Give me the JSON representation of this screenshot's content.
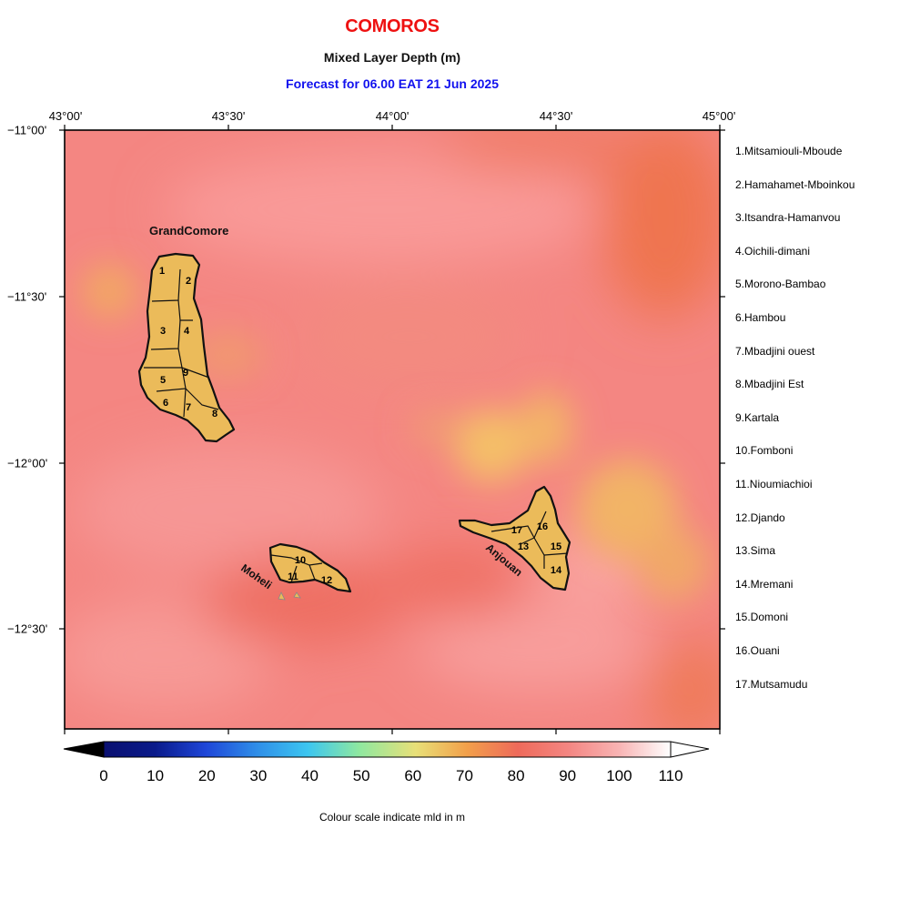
{
  "header": {
    "title": "COMOROS",
    "subtitle": "Mixed Layer Depth (m)",
    "forecast": "Forecast for  06.00 EAT 21 Jun 2025"
  },
  "axes": {
    "longitude_labels": [
      "43°00'",
      "43°30'",
      "44°00'",
      "44°30'",
      "45°00'"
    ],
    "latitude_labels": [
      "−11°00'",
      "−11°30'",
      "−12°00'",
      "−12°30'"
    ]
  },
  "map_labels": {
    "grand_comore": "GrandComore",
    "moheli": "Moheli",
    "anjouan": "Anjouan"
  },
  "regions": [
    {
      "num": "1",
      "name": "1.Mitsamiouli-Mboude"
    },
    {
      "num": "2",
      "name": "2.Hamahamet-Mboinkou"
    },
    {
      "num": "3",
      "name": "3.Itsandra-Hamanvou"
    },
    {
      "num": "4",
      "name": "4.Oichili-dimani"
    },
    {
      "num": "5",
      "name": "5.Morono-Bambao"
    },
    {
      "num": "6",
      "name": "6.Hambou"
    },
    {
      "num": "7",
      "name": "7.Mbadjini ouest"
    },
    {
      "num": "8",
      "name": "8.Mbadjini Est"
    },
    {
      "num": "9",
      "name": "9.Kartala"
    },
    {
      "num": "10",
      "name": "10.Fomboni"
    },
    {
      "num": "11",
      "name": "11.Nioumiachioi"
    },
    {
      "num": "12",
      "name": "12.Djando"
    },
    {
      "num": "13",
      "name": "13.Sima"
    },
    {
      "num": "14",
      "name": "14.Mremani"
    },
    {
      "num": "15",
      "name": "15.Domoni"
    },
    {
      "num": "16",
      "name": "16.Ouani"
    },
    {
      "num": "17",
      "name": "17.Mutsamudu"
    }
  ],
  "colorbar": {
    "ticks": [
      "0",
      "10",
      "20",
      "30",
      "40",
      "50",
      "60",
      "70",
      "80",
      "90",
      "100",
      "110"
    ],
    "caption": "Colour scale indicate mld in m",
    "colors": {
      "low": "#000000",
      "navy": "#0a1a8a",
      "blue": "#1e46d8",
      "cyan": "#3cc6f0",
      "green": "#8ee8a0",
      "yellow": "#e8e078",
      "orange": "#f2a04a",
      "red": "#ee6a5a",
      "pink": "#f8a8a8",
      "white": "#ffffff"
    }
  },
  "colors": {
    "title": "#ee1111",
    "forecast": "#1111ee",
    "field_base": "#f48682",
    "land": "#ebbb5a"
  }
}
